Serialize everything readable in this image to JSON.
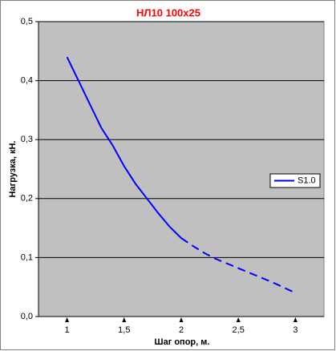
{
  "chart_data": {
    "type": "line",
    "title": "НЛ10 100х25",
    "x_label": "Шаг опор, м.",
    "y_label": "Нагрузка, кН.",
    "x": [
      1,
      1.1,
      1.2,
      1.3,
      1.4,
      1.5,
      1.6,
      1.7,
      1.8,
      1.9,
      2,
      2.1,
      2.2,
      2.3,
      2.4,
      2.5,
      2.6,
      2.7,
      2.8,
      2.9,
      3
    ],
    "series": [
      {
        "name": "S1.0",
        "color": "#0000ff",
        "dashed_after": 2,
        "values": [
          0.44,
          0.4,
          0.36,
          0.32,
          0.29,
          0.255,
          0.225,
          0.2,
          0.175,
          0.152,
          0.133,
          0.12,
          0.108,
          0.098,
          0.09,
          0.082,
          0.074,
          0.066,
          0.058,
          0.049,
          0.04
        ]
      }
    ],
    "xlim": [
      0.75,
      3.25
    ],
    "xticks": [
      1,
      {
        "value": 1.5,
        "label": "1,5"
      },
      2,
      {
        "value": 2.5,
        "label": "2,5"
      },
      3
    ],
    "ylim": [
      0,
      0.5
    ],
    "yticks": [
      {
        "value": 0,
        "label": "0,0"
      },
      {
        "value": 0.1,
        "label": "0,1"
      },
      {
        "value": 0.2,
        "label": "0,2"
      },
      {
        "value": 0.3,
        "label": "0,3"
      },
      {
        "value": 0.4,
        "label": "0,4"
      },
      {
        "value": 0.5,
        "label": "0,5"
      }
    ],
    "grid": true,
    "legend": "right",
    "plot_background": "#c0c0c0"
  }
}
